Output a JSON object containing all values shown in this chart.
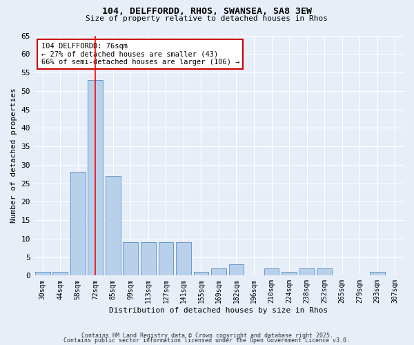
{
  "title1": "104, DELFFORDD, RHOS, SWANSEA, SA8 3EW",
  "title2": "Size of property relative to detached houses in Rhos",
  "xlabel": "Distribution of detached houses by size in Rhos",
  "ylabel": "Number of detached properties",
  "categories": [
    "30sqm",
    "44sqm",
    "58sqm",
    "72sqm",
    "85sqm",
    "99sqm",
    "113sqm",
    "127sqm",
    "141sqm",
    "155sqm",
    "169sqm",
    "182sqm",
    "196sqm",
    "210sqm",
    "224sqm",
    "238sqm",
    "252sqm",
    "265sqm",
    "279sqm",
    "293sqm",
    "307sqm"
  ],
  "values": [
    1,
    1,
    28,
    53,
    27,
    9,
    9,
    9,
    9,
    1,
    2,
    3,
    0,
    2,
    1,
    2,
    2,
    0,
    0,
    1,
    0
  ],
  "bar_color": "#b8d0ea",
  "bar_edge_color": "#6699cc",
  "background_color": "#e8eef8",
  "grid_color": "#ffffff",
  "red_line_x": 3.0,
  "annotation_text": "104 DELFFORDD: 76sqm\n← 27% of detached houses are smaller (43)\n66% of semi-detached houses are larger (106) →",
  "annotation_box_color": "#ffffff",
  "annotation_box_edge": "#cc0000",
  "ylim": [
    0,
    65
  ],
  "yticks": [
    0,
    5,
    10,
    15,
    20,
    25,
    30,
    35,
    40,
    45,
    50,
    55,
    60,
    65
  ],
  "footer1": "Contains HM Land Registry data © Crown copyright and database right 2025.",
  "footer2": "Contains public sector information licensed under the Open Government Licence v3.0."
}
